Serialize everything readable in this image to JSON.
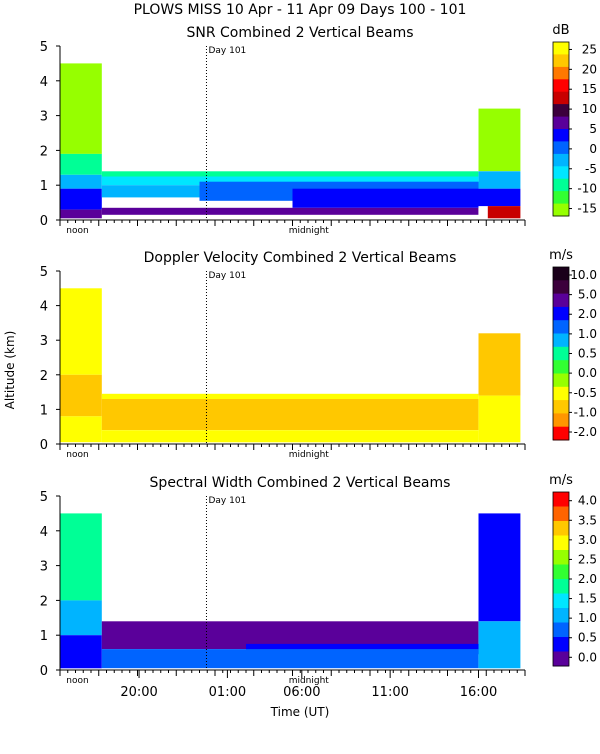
{
  "header": {
    "line1": "PLOWS MISS  10 Apr - 11 Apr 09 Days 100 - 101"
  },
  "shared": {
    "ylabel": "Altitude (km)",
    "xlabel": "Time (UT)",
    "y_ticks": [
      0,
      1,
      2,
      3,
      4,
      5
    ],
    "ylim": [
      0,
      5
    ],
    "day_marker_label": "Day 101",
    "noon_label": "noon",
    "midnight_label": "midnight",
    "x_ticks": [
      "20:00",
      "01:00",
      "06:00",
      "11:00",
      "16:00"
    ]
  },
  "colors": {
    "background": "#ffffff",
    "text": "#000000"
  },
  "chart_data": [
    {
      "type": "heatmap",
      "title": "SNR Combined 2 Vertical Beams",
      "units": "dB",
      "ylabel": "Altitude (km)",
      "colorbar_ticks": [
        "25",
        "20",
        "15",
        "10",
        "5",
        "0",
        "-5",
        "-10",
        "-15"
      ],
      "colorbar_colors": [
        "#ffff00",
        "#ffc800",
        "#ff7800",
        "#ff0000",
        "#c80000",
        "#3c003c",
        "#5a009a",
        "#0000ff",
        "#0064ff",
        "#00b4ff",
        "#00e6ff",
        "#00ff96",
        "#32ff32",
        "#96ff00"
      ],
      "regions": [
        {
          "t0": 0.0,
          "t1": 0.09,
          "z0": 1.9,
          "z1": 4.5,
          "color": "#96ff00"
        },
        {
          "t0": 0.0,
          "t1": 0.09,
          "z0": 1.3,
          "z1": 1.9,
          "color": "#00ff96"
        },
        {
          "t0": 0.0,
          "t1": 0.09,
          "z0": 0.9,
          "z1": 1.3,
          "color": "#00b4ff"
        },
        {
          "t0": 0.0,
          "t1": 0.09,
          "z0": 0.3,
          "z1": 0.9,
          "color": "#0000ff"
        },
        {
          "t0": 0.0,
          "t1": 0.09,
          "z0": 0.05,
          "z1": 0.3,
          "color": "#5a009a"
        },
        {
          "t0": 0.09,
          "t1": 0.9,
          "z0": 1.25,
          "z1": 1.4,
          "color": "#00ff96"
        },
        {
          "t0": 0.09,
          "t1": 0.9,
          "z0": 1.0,
          "z1": 1.25,
          "color": "#00e6ff"
        },
        {
          "t0": 0.09,
          "t1": 0.9,
          "z0": 0.65,
          "z1": 1.0,
          "color": "#00b4ff"
        },
        {
          "t0": 0.3,
          "t1": 0.9,
          "z0": 0.55,
          "z1": 1.1,
          "color": "#0064ff"
        },
        {
          "t0": 0.5,
          "t1": 0.9,
          "z0": 0.35,
          "z1": 0.9,
          "color": "#0000ff"
        },
        {
          "t0": 0.09,
          "t1": 0.9,
          "z0": 0.15,
          "z1": 0.35,
          "color": "#5a009a"
        },
        {
          "t0": 0.9,
          "t1": 0.99,
          "z0": 1.4,
          "z1": 3.2,
          "color": "#96ff00"
        },
        {
          "t0": 0.9,
          "t1": 0.99,
          "z0": 0.9,
          "z1": 1.4,
          "color": "#00b4ff"
        },
        {
          "t0": 0.9,
          "t1": 0.99,
          "z0": 0.4,
          "z1": 0.9,
          "color": "#0000ff"
        },
        {
          "t0": 0.92,
          "t1": 0.99,
          "z0": 0.05,
          "z1": 0.4,
          "color": "#c80000"
        }
      ]
    },
    {
      "type": "heatmap",
      "title": "Doppler Velocity Combined 2 Vertical Beams",
      "units": "m/s",
      "ylabel": "Altitude (km)",
      "colorbar_ticks": [
        "10.0",
        "5.0",
        "2.0",
        "1.0",
        "0.5",
        "0.0",
        "-0.5",
        "-1.0",
        "-2.0"
      ],
      "colorbar_colors": [
        "#1a001a",
        "#3c003c",
        "#5a009a",
        "#0000ff",
        "#0064ff",
        "#00b4ff",
        "#00ff96",
        "#32ff32",
        "#96ff00",
        "#ffff00",
        "#ffc800",
        "#ff9600",
        "#ff0000"
      ],
      "regions": [
        {
          "t0": 0.0,
          "t1": 0.09,
          "z0": 2.0,
          "z1": 4.5,
          "color": "#ffff00"
        },
        {
          "t0": 0.0,
          "t1": 0.09,
          "z0": 0.8,
          "z1": 2.0,
          "color": "#ffc800"
        },
        {
          "t0": 0.0,
          "t1": 0.09,
          "z0": 0.05,
          "z1": 0.8,
          "color": "#ffff00"
        },
        {
          "t0": 0.09,
          "t1": 0.9,
          "z0": 1.3,
          "z1": 1.45,
          "color": "#ffff00"
        },
        {
          "t0": 0.09,
          "t1": 0.9,
          "z0": 0.4,
          "z1": 1.3,
          "color": "#ffc800"
        },
        {
          "t0": 0.09,
          "t1": 0.9,
          "z0": 0.05,
          "z1": 0.4,
          "color": "#ffff00"
        },
        {
          "t0": 0.9,
          "t1": 0.99,
          "z0": 1.4,
          "z1": 3.2,
          "color": "#ffc800"
        },
        {
          "t0": 0.9,
          "t1": 0.99,
          "z0": 0.05,
          "z1": 1.4,
          "color": "#ffff00"
        }
      ]
    },
    {
      "type": "heatmap",
      "title": "Spectral Width Combined 2 Vertical Beams",
      "units": "m/s",
      "ylabel": "Altitude (km)",
      "colorbar_ticks": [
        "4.0",
        "3.5",
        "3.0",
        "2.5",
        "2.0",
        "1.5",
        "1.0",
        "0.5",
        "0.0"
      ],
      "colorbar_colors": [
        "#ff0000",
        "#ff6400",
        "#ffc800",
        "#ffff00",
        "#96ff00",
        "#32ff32",
        "#00ff96",
        "#00e6ff",
        "#00b4ff",
        "#0064ff",
        "#0000ff",
        "#5a009a"
      ],
      "regions": [
        {
          "t0": 0.0,
          "t1": 0.09,
          "z0": 2.0,
          "z1": 4.5,
          "color": "#00ff96"
        },
        {
          "t0": 0.0,
          "t1": 0.09,
          "z0": 1.0,
          "z1": 2.0,
          "color": "#00b4ff"
        },
        {
          "t0": 0.0,
          "t1": 0.09,
          "z0": 0.05,
          "z1": 1.0,
          "color": "#0000ff"
        },
        {
          "t0": 0.09,
          "t1": 0.9,
          "z0": 0.6,
          "z1": 1.4,
          "color": "#5a009a"
        },
        {
          "t0": 0.4,
          "t1": 0.9,
          "z0": 0.45,
          "z1": 0.75,
          "color": "#0000ff"
        },
        {
          "t0": 0.09,
          "t1": 0.9,
          "z0": 0.05,
          "z1": 0.6,
          "color": "#0064ff"
        },
        {
          "t0": 0.9,
          "t1": 0.99,
          "z0": 1.4,
          "z1": 4.5,
          "color": "#0000ff"
        },
        {
          "t0": 0.9,
          "t1": 0.99,
          "z0": 0.05,
          "z1": 1.4,
          "color": "#00b4ff"
        }
      ]
    }
  ]
}
